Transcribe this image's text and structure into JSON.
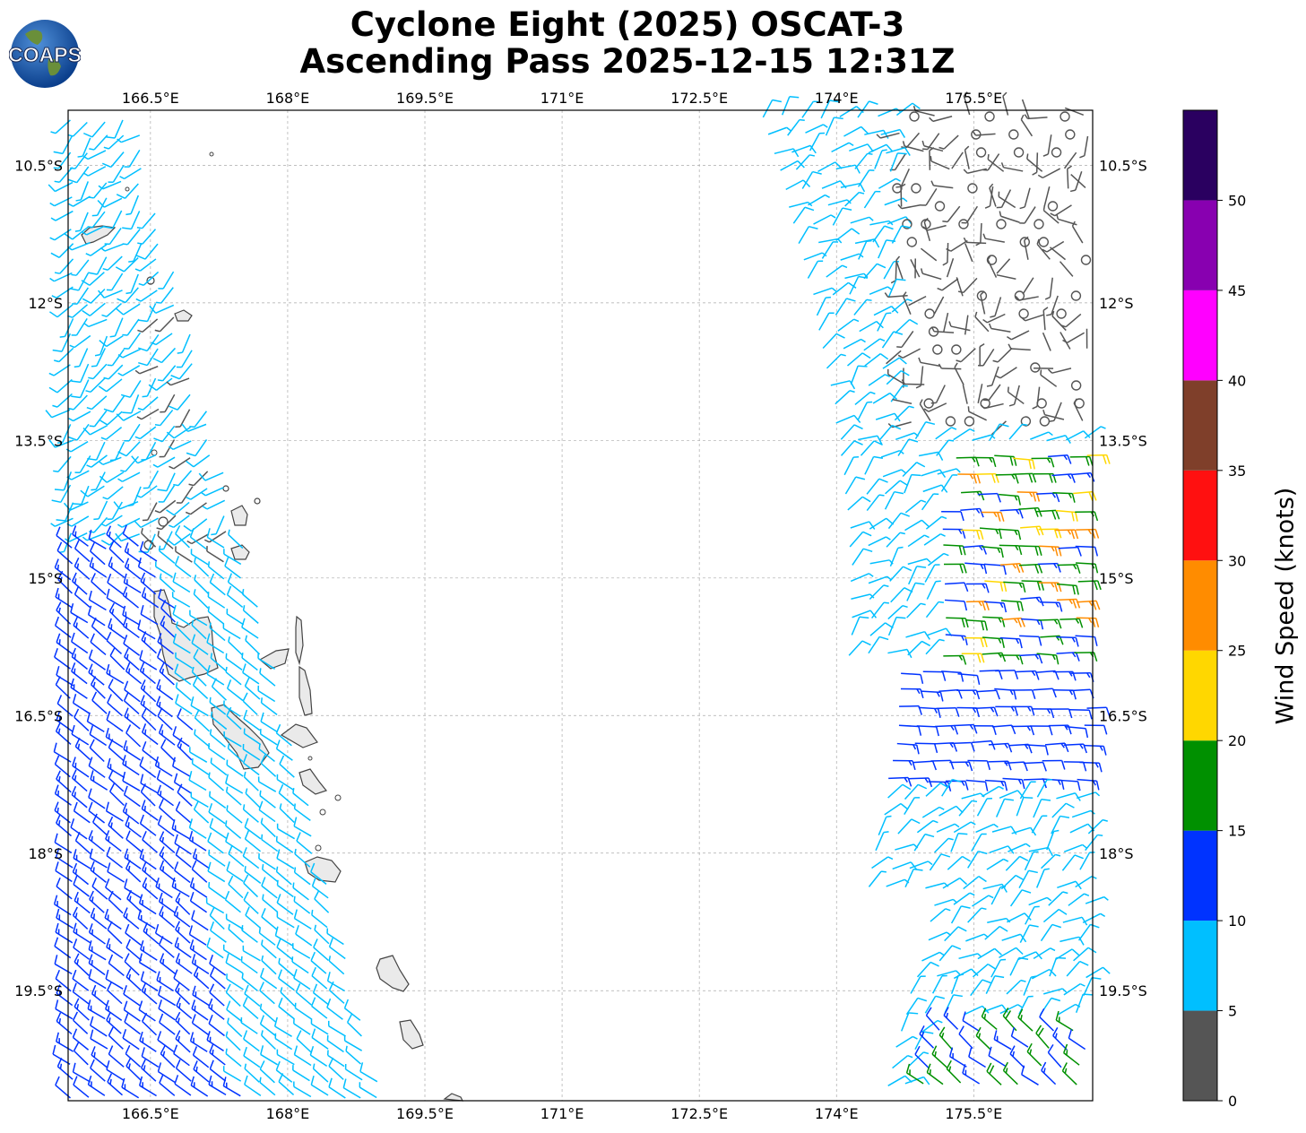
{
  "title": {
    "line1": "Cyclone Eight (2025) OSCAT-3",
    "line2": "Ascending Pass 2025-12-15 12:31Z"
  },
  "logo": {
    "text": "COAPS"
  },
  "map": {
    "lon_range": [
      165.6,
      176.8
    ],
    "lat_range": [
      -20.7,
      -9.9
    ],
    "lon_ticks": [
      {
        "value": 166.5,
        "label": "166.5°E"
      },
      {
        "value": 168.0,
        "label": "168°E"
      },
      {
        "value": 169.5,
        "label": "169.5°E"
      },
      {
        "value": 171.0,
        "label": "171°E"
      },
      {
        "value": 172.5,
        "label": "172.5°E"
      },
      {
        "value": 174.0,
        "label": "174°E"
      },
      {
        "value": 175.5,
        "label": "175.5°E"
      }
    ],
    "lat_ticks": [
      {
        "value": -10.5,
        "label": "10.5°S"
      },
      {
        "value": -12.0,
        "label": "12°S"
      },
      {
        "value": -13.5,
        "label": "13.5°S"
      },
      {
        "value": -15.0,
        "label": "15°S"
      },
      {
        "value": -16.5,
        "label": "16.5°S"
      },
      {
        "value": -18.0,
        "label": "18°S"
      },
      {
        "value": -19.5,
        "label": "19.5°S"
      }
    ],
    "gridlines": true
  },
  "colorbar": {
    "title": "Wind Speed (knots)",
    "bins": [
      {
        "min": 0,
        "max": 5,
        "color": "#555555"
      },
      {
        "min": 5,
        "max": 10,
        "color": "#00bfff"
      },
      {
        "min": 10,
        "max": 15,
        "color": "#0033ff"
      },
      {
        "min": 15,
        "max": 20,
        "color": "#009000"
      },
      {
        "min": 20,
        "max": 25,
        "color": "#ffd700"
      },
      {
        "min": 25,
        "max": 30,
        "color": "#ff8c00"
      },
      {
        "min": 30,
        "max": 35,
        "color": "#ff1010"
      },
      {
        "min": 35,
        "max": 40,
        "color": "#7f3f2a"
      },
      {
        "min": 40,
        "max": 45,
        "color": "#ff00ff"
      },
      {
        "min": 45,
        "max": 50,
        "color": "#8800b0"
      },
      {
        "min": 50,
        "max": 55,
        "color": "#2a0060"
      }
    ],
    "tick_labels": [
      "0",
      "5",
      "10",
      "15",
      "20",
      "25",
      "30",
      "35",
      "40",
      "45",
      "50"
    ]
  }
}
